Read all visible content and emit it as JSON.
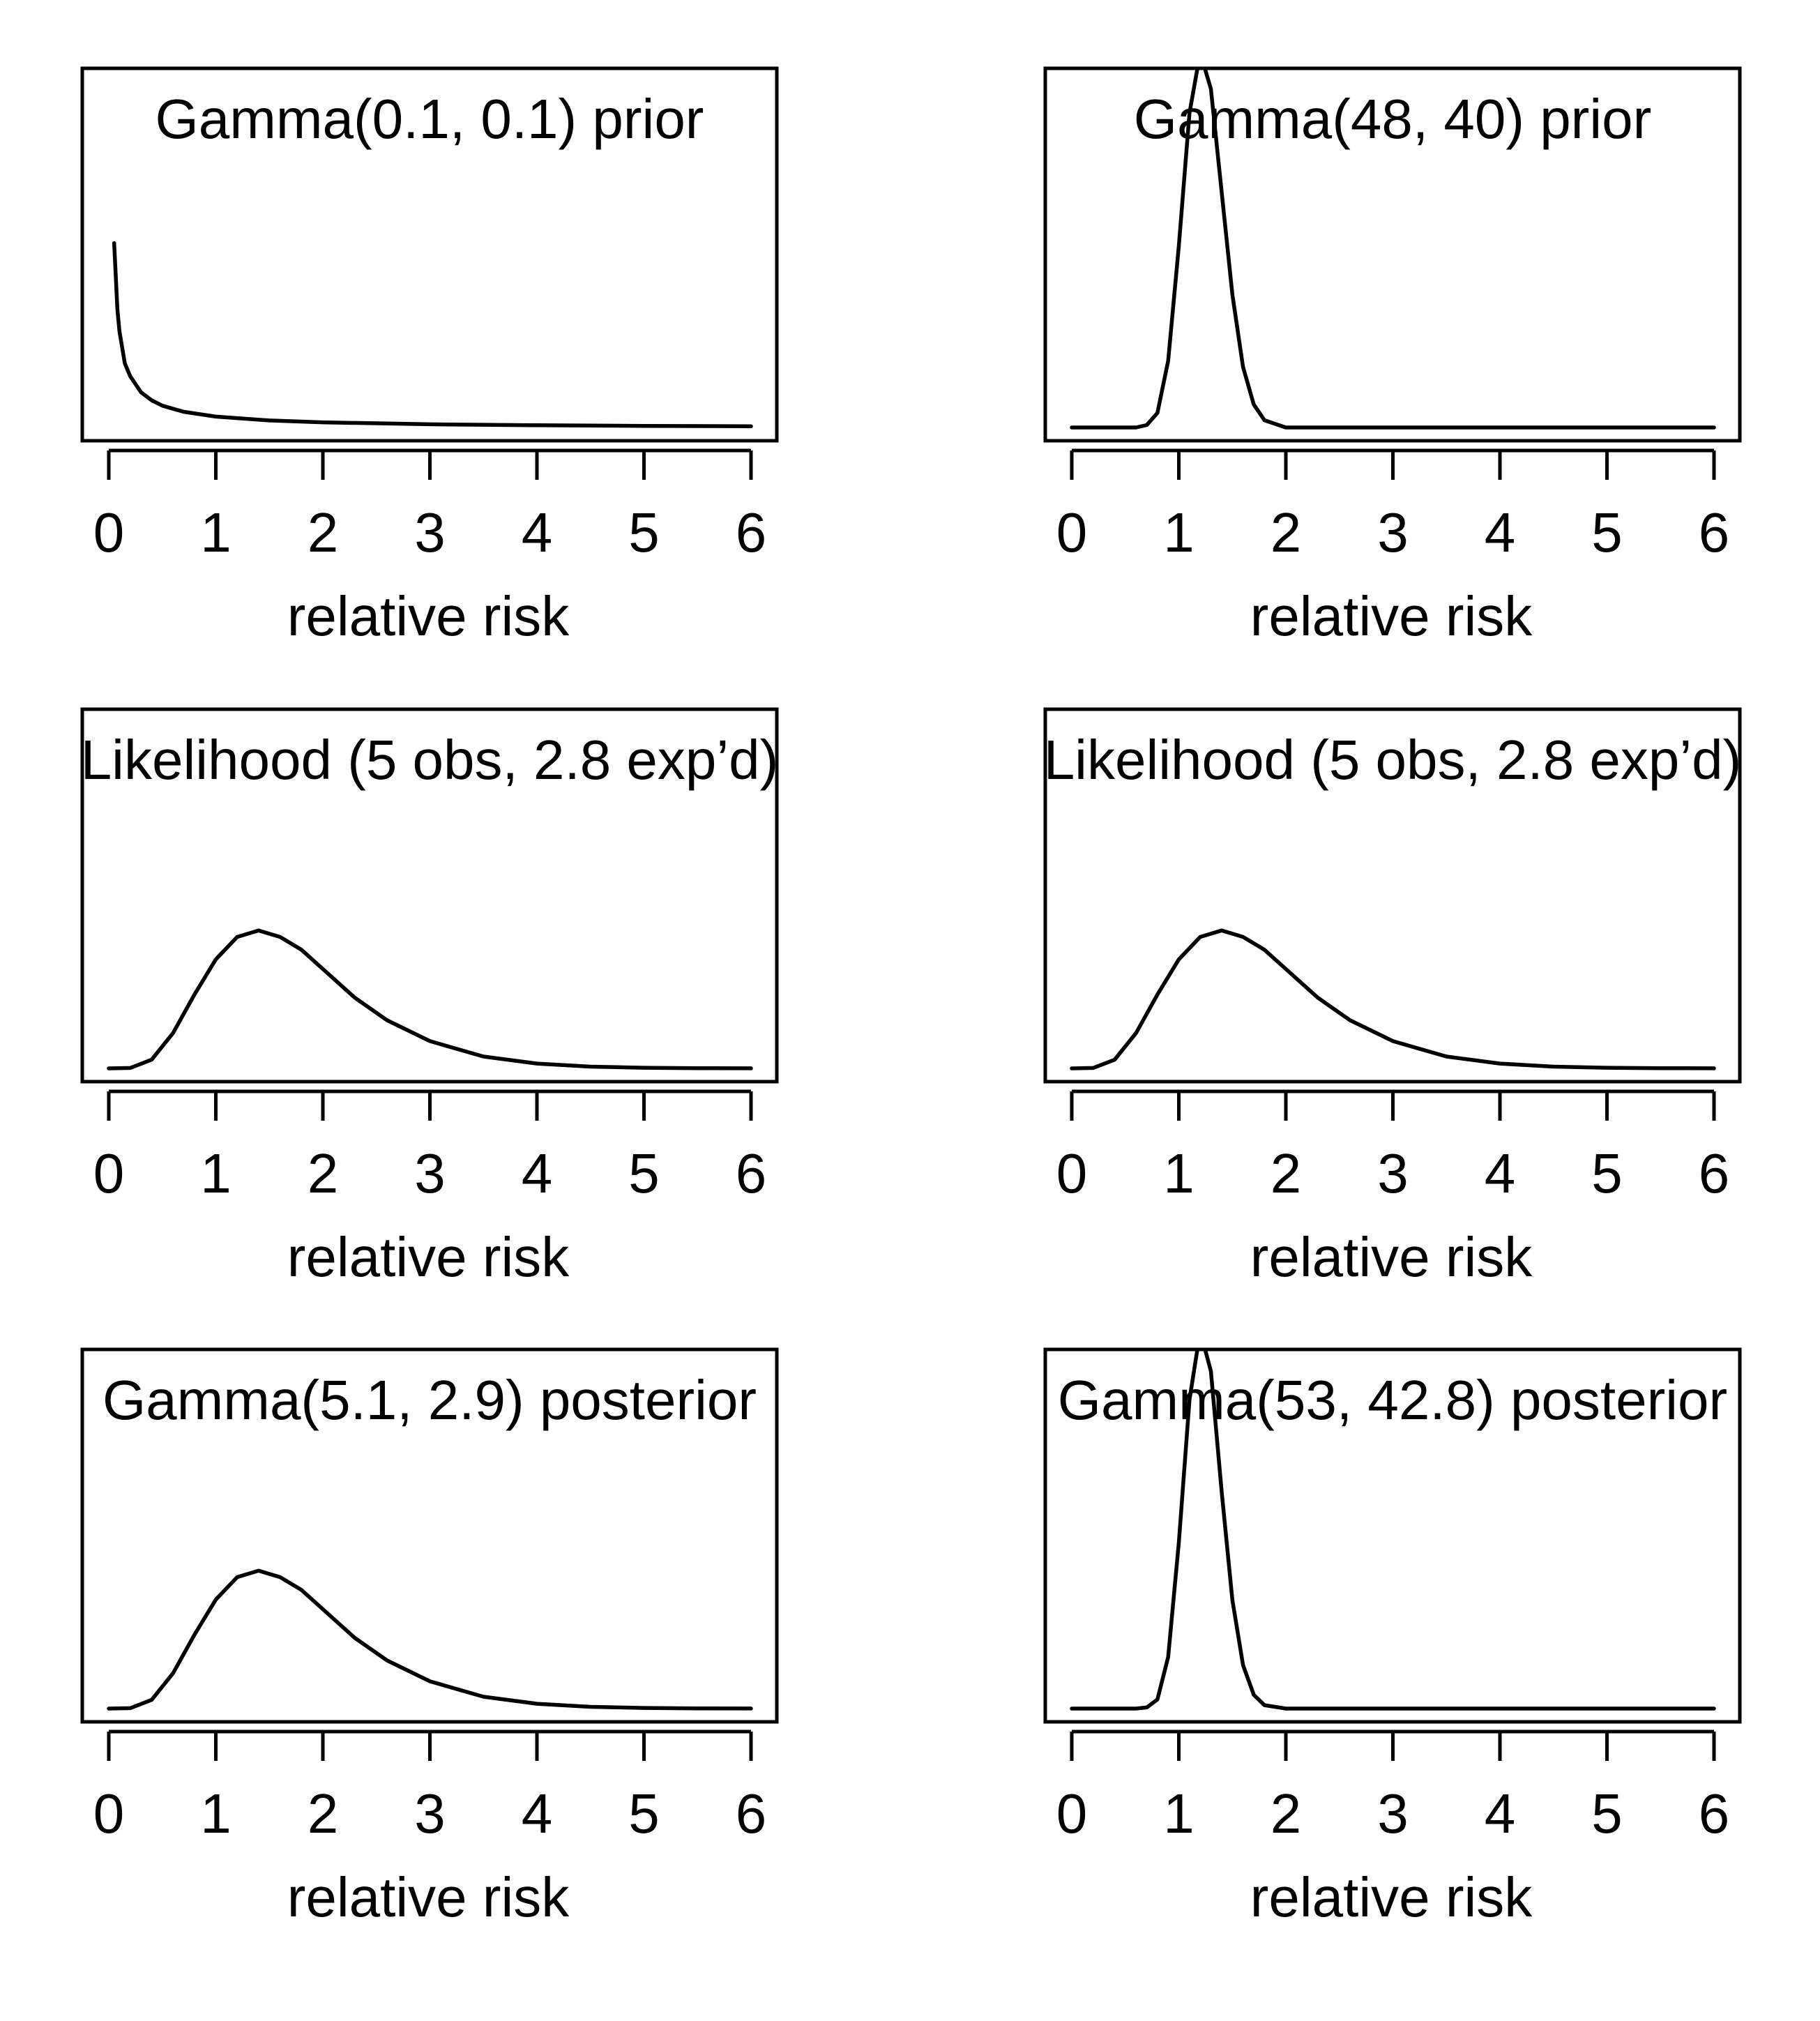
{
  "chart_data": [
    {
      "type": "line",
      "title": "Gamma(0.1, 0.1) prior",
      "xlabel": "relative risk",
      "ylabel": "",
      "xlim": [
        0,
        6
      ],
      "x_ticks": [
        "0",
        "1",
        "2",
        "3",
        "4",
        "5",
        "6"
      ],
      "y_axis_shown": false,
      "x": [
        0.05,
        0.08,
        0.1,
        0.15,
        0.2,
        0.3,
        0.4,
        0.5,
        0.7,
        1.0,
        1.5,
        2.0,
        3.0,
        4.0,
        5.0,
        6.0
      ],
      "y": [
        5.75,
        3.7,
        3.0,
        2.0,
        1.6,
        1.1,
        0.85,
        0.68,
        0.49,
        0.34,
        0.22,
        0.16,
        0.1,
        0.07,
        0.05,
        0.04
      ],
      "ylim": [
        0,
        11.2
      ]
    },
    {
      "type": "line",
      "title": "Gamma(48, 40) prior",
      "xlabel": "relative risk",
      "ylabel": "",
      "xlim": [
        0,
        6
      ],
      "x_ticks": [
        "0",
        "1",
        "2",
        "3",
        "4",
        "5",
        "6"
      ],
      "y_axis_shown": false,
      "x": [
        0.0,
        0.6,
        0.7,
        0.8,
        0.9,
        1.0,
        1.1,
        1.2,
        1.3,
        1.4,
        1.5,
        1.6,
        1.7,
        1.8,
        2.0,
        6.0
      ],
      "y": [
        0.0,
        0.0,
        0.02,
        0.12,
        0.55,
        1.5,
        2.6,
        3.1,
        2.8,
        1.95,
        1.1,
        0.5,
        0.19,
        0.06,
        0.0,
        0.0
      ],
      "ylim": [
        0,
        2.97
      ]
    },
    {
      "type": "line",
      "title": "Likelihood (5 obs, 2.8 exp’d)",
      "xlabel": "relative risk",
      "ylabel": "",
      "xlim": [
        0,
        6
      ],
      "x_ticks": [
        "0",
        "1",
        "2",
        "3",
        "4",
        "5",
        "6"
      ],
      "y_axis_shown": false,
      "x": [
        0.0,
        0.2,
        0.4,
        0.6,
        0.8,
        1.0,
        1.2,
        1.4,
        1.6,
        1.8,
        2.0,
        2.3,
        2.6,
        3.0,
        3.5,
        4.0,
        4.5,
        5.0,
        5.5,
        6.0
      ],
      "y": [
        0.0,
        0.0014,
        0.027,
        0.11,
        0.23,
        0.34,
        0.41,
        0.43,
        0.41,
        0.37,
        0.31,
        0.22,
        0.15,
        0.085,
        0.037,
        0.015,
        0.0055,
        0.002,
        0.0007,
        0.0002
      ],
      "ylim": [
        0,
        1.12
      ]
    },
    {
      "type": "line",
      "title": "Likelihood (5 obs, 2.8 exp’d)",
      "xlabel": "relative risk",
      "ylabel": "",
      "xlim": [
        0,
        6
      ],
      "x_ticks": [
        "0",
        "1",
        "2",
        "3",
        "4",
        "5",
        "6"
      ],
      "y_axis_shown": false,
      "x": [
        0.0,
        0.2,
        0.4,
        0.6,
        0.8,
        1.0,
        1.2,
        1.4,
        1.6,
        1.8,
        2.0,
        2.3,
        2.6,
        3.0,
        3.5,
        4.0,
        4.5,
        5.0,
        5.5,
        6.0
      ],
      "y": [
        0.0,
        0.0014,
        0.027,
        0.11,
        0.23,
        0.34,
        0.41,
        0.43,
        0.41,
        0.37,
        0.31,
        0.22,
        0.15,
        0.085,
        0.037,
        0.015,
        0.0055,
        0.002,
        0.0007,
        0.0002
      ],
      "ylim": [
        0,
        1.12
      ]
    },
    {
      "type": "line",
      "title": "Gamma(5.1, 2.9) posterior",
      "xlabel": "relative risk",
      "ylabel": "",
      "xlim": [
        0,
        6
      ],
      "x_ticks": [
        "0",
        "1",
        "2",
        "3",
        "4",
        "5",
        "6"
      ],
      "y_axis_shown": false,
      "x": [
        0.0,
        0.2,
        0.4,
        0.6,
        0.8,
        1.0,
        1.2,
        1.4,
        1.6,
        1.8,
        2.0,
        2.3,
        2.6,
        3.0,
        3.5,
        4.0,
        4.5,
        5.0,
        5.5,
        6.0
      ],
      "y": [
        0.0,
        0.0014,
        0.027,
        0.11,
        0.23,
        0.34,
        0.41,
        0.43,
        0.41,
        0.37,
        0.31,
        0.22,
        0.15,
        0.085,
        0.037,
        0.015,
        0.0055,
        0.002,
        0.0007,
        0.0002
      ],
      "ylim": [
        0,
        1.12
      ]
    },
    {
      "type": "line",
      "title": "Gamma(53, 42.8) posterior",
      "xlabel": "relative risk",
      "ylabel": "",
      "xlim": [
        0,
        6
      ],
      "x_ticks": [
        "0",
        "1",
        "2",
        "3",
        "4",
        "5",
        "6"
      ],
      "y_axis_shown": false,
      "x": [
        0.0,
        0.6,
        0.7,
        0.8,
        0.9,
        1.0,
        1.1,
        1.2,
        1.3,
        1.4,
        1.5,
        1.6,
        1.7,
        1.8,
        2.0,
        6.0
      ],
      "y": [
        0.0,
        0.0,
        0.01,
        0.08,
        0.45,
        1.45,
        2.7,
        3.3,
        2.95,
        1.9,
        0.95,
        0.38,
        0.12,
        0.03,
        0.0,
        0.0
      ],
      "ylim": [
        0,
        3.14
      ]
    }
  ]
}
